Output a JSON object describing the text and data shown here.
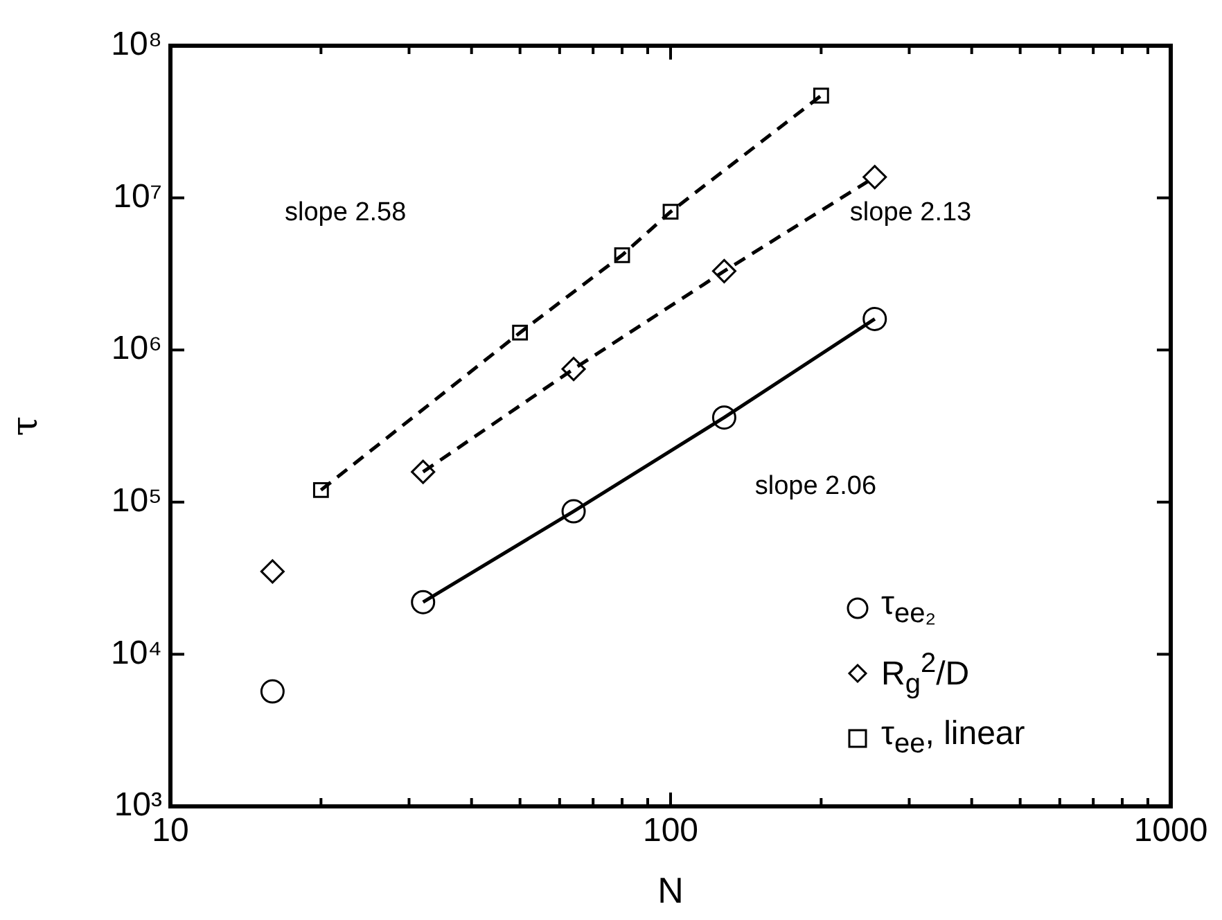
{
  "chart_data": {
    "type": "scatter",
    "xlabel": "N",
    "ylabel": "τ",
    "log": "xy",
    "grid": false,
    "legend": "bottom right",
    "xlim": [
      10,
      1000
    ],
    "xticks": [
      {
        "value": 10,
        "label": "10"
      },
      {
        "value": 20,
        "label": null
      },
      {
        "value": 30,
        "label": null
      },
      {
        "value": 40,
        "label": null
      },
      {
        "value": 50,
        "label": null
      },
      {
        "value": 60,
        "label": null
      },
      {
        "value": 70,
        "label": null
      },
      {
        "value": 80,
        "label": null
      },
      {
        "value": 90,
        "label": null
      },
      {
        "value": 100,
        "label": "100"
      },
      {
        "value": 200,
        "label": null
      },
      {
        "value": 300,
        "label": null
      },
      {
        "value": 400,
        "label": null
      },
      {
        "value": 500,
        "label": null
      },
      {
        "value": 600,
        "label": null
      },
      {
        "value": 700,
        "label": null
      },
      {
        "value": 800,
        "label": null
      },
      {
        "value": 900,
        "label": null
      },
      {
        "value": 1000,
        "label": "1000"
      }
    ],
    "ylim": [
      1000,
      100000000
    ],
    "yticks": [
      {
        "value": 1000,
        "label": "10³"
      },
      {
        "value": 10000,
        "label": "10⁴"
      },
      {
        "value": 100000,
        "label": "10⁵"
      },
      {
        "value": 1000000,
        "label": "10⁶"
      },
      {
        "value": 10000000,
        "label": "10⁷"
      },
      {
        "value": 100000000,
        "label": "10⁸"
      }
    ],
    "series": [
      {
        "name": "τ$_{ee₂}$",
        "type": "scatter",
        "marker": "circle",
        "color": "#000000",
        "x": [
          16,
          32,
          64,
          128,
          256
        ],
        "values": [
          5700,
          22000,
          87000,
          360000,
          1600000
        ]
      },
      {
        "name": "R$_{g}$$^{2}$/D",
        "type": "scatter",
        "marker": "diamond",
        "color": "#000000",
        "x": [
          16,
          32,
          64,
          128,
          256
        ],
        "values": [
          35000,
          158000,
          750000,
          3300000,
          13700000
        ]
      },
      {
        "name": "τ$_{ee}$, linear",
        "type": "scatter",
        "marker": "square",
        "color": "#000000",
        "x": [
          20,
          50,
          80,
          100,
          200
        ],
        "values": [
          120000,
          1300000,
          4200000,
          8100000,
          47000000
        ]
      },
      {
        "type": "line",
        "marker": "none",
        "line_style": "solid",
        "color": "#000000",
        "x": [
          32,
          64,
          128,
          256
        ],
        "values": [
          22000,
          87000,
          360000,
          1600000
        ]
      },
      {
        "type": "line",
        "marker": "none",
        "line_style": "dashed",
        "color": "#000000",
        "x": [
          32,
          64,
          128,
          256
        ],
        "values": [
          158000,
          750000,
          3300000,
          13700000
        ]
      },
      {
        "type": "line",
        "marker": "none",
        "line_style": "dashed",
        "color": "#000000",
        "x": [
          20,
          50,
          80,
          100,
          200
        ],
        "values": [
          120000,
          1300000,
          4200000,
          8100000,
          47000000
        ]
      }
    ],
    "annotations": [
      "slope 2.58",
      "slope 2.13",
      "slope 2.06"
    ]
  }
}
